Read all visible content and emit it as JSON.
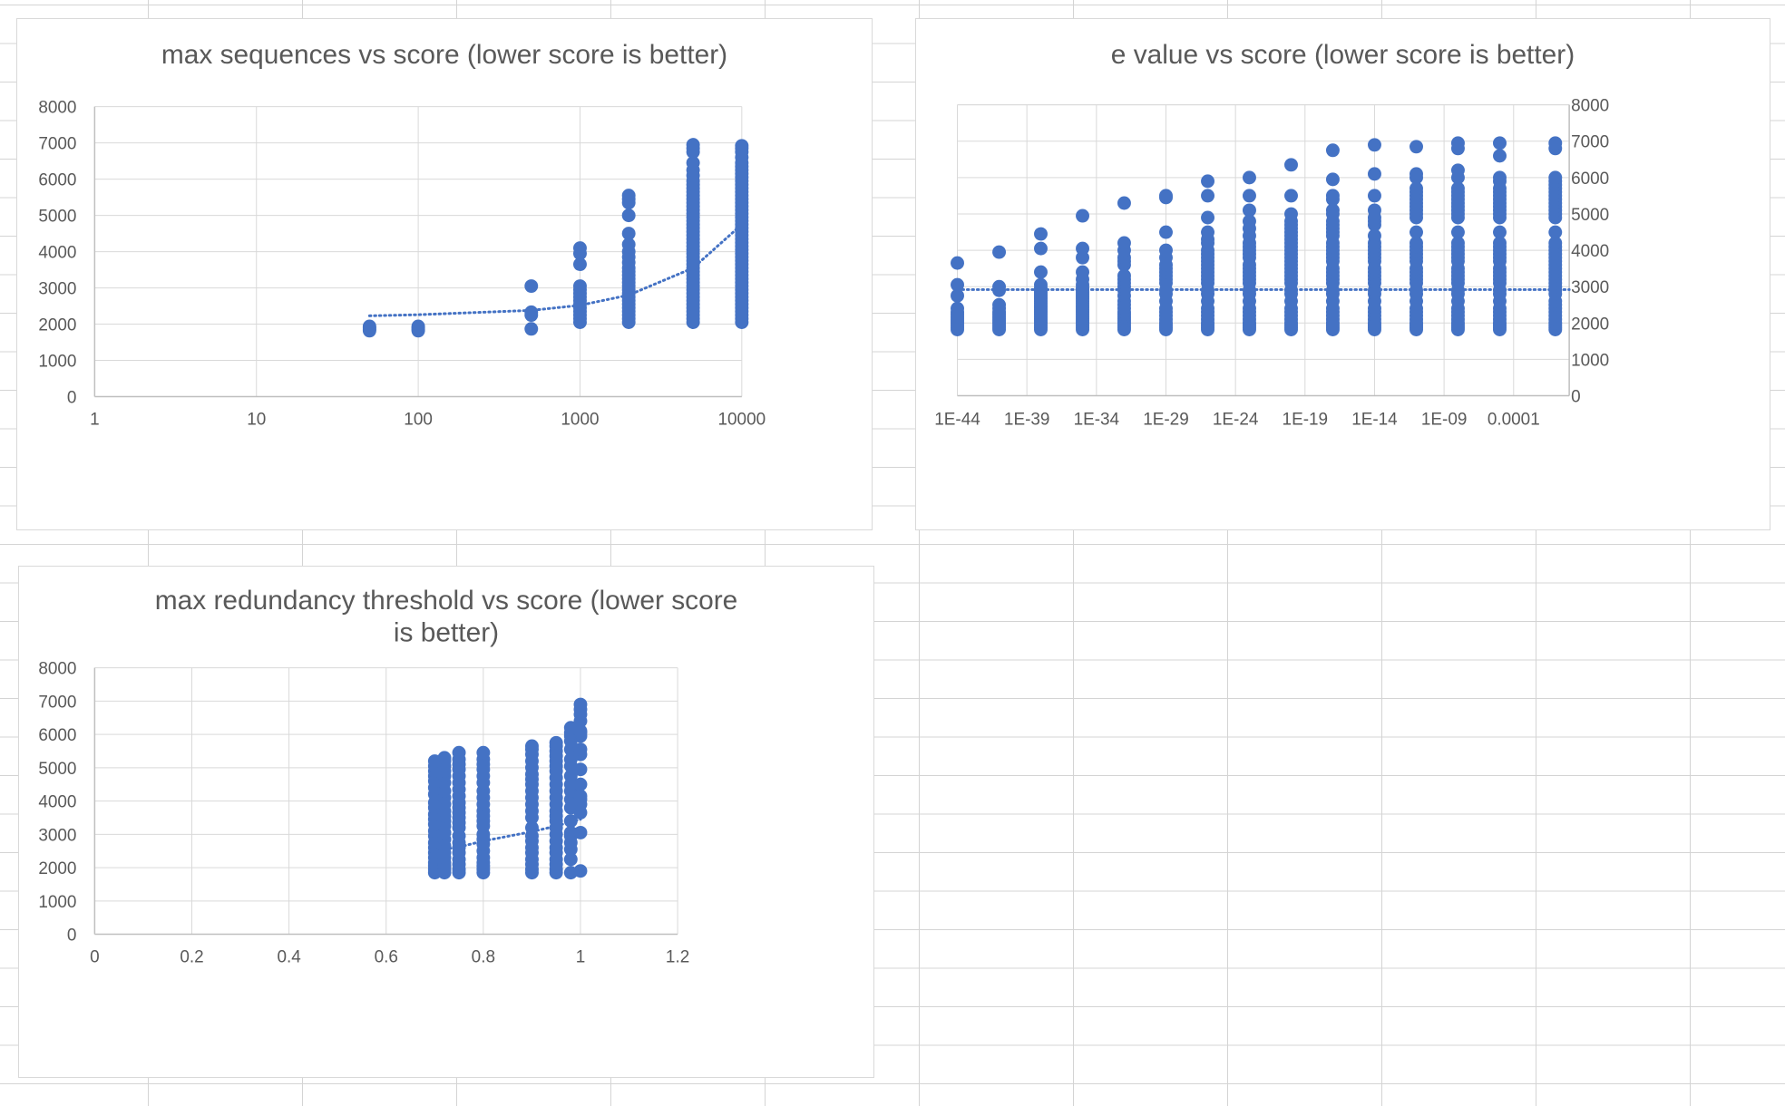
{
  "chart_data": [
    {
      "type": "scatter",
      "title": "max sequences vs score (lower score is better)",
      "x_scale": "log",
      "xlim": [
        1,
        10000
      ],
      "ylim": [
        0,
        8000
      ],
      "x_ticks": [
        "1",
        "10",
        "100",
        "1000",
        "10000"
      ],
      "y_ticks": [
        "0",
        "1000",
        "2000",
        "3000",
        "4000",
        "5000",
        "6000",
        "7000",
        "8000"
      ],
      "grid": true,
      "legend": "none",
      "color": "#4472c4",
      "trendline": {
        "type": "exponential",
        "style": "dotted",
        "points": [
          [
            50,
            2230
          ],
          [
            100,
            2260
          ],
          [
            500,
            2380
          ],
          [
            1000,
            2520
          ],
          [
            2000,
            2800
          ],
          [
            5000,
            3550
          ],
          [
            10000,
            4750
          ]
        ]
      },
      "series": [
        {
          "x": 50,
          "y": [
            1820,
            1860,
            1900,
            1940
          ]
        },
        {
          "x": 100,
          "y": [
            1820,
            1860,
            1900,
            1940
          ]
        },
        {
          "x": 500,
          "y": [
            1870,
            2250,
            2330,
            3050
          ]
        },
        {
          "x": 1000,
          "y": [
            2050,
            2150,
            2250,
            2350,
            2450,
            2550,
            2650,
            2750,
            2850,
            2950,
            3050,
            3650,
            3950,
            4100
          ]
        },
        {
          "x": 2000,
          "y": [
            2050,
            2150,
            2250,
            2350,
            2450,
            2550,
            2650,
            2750,
            2850,
            2950,
            3050,
            3150,
            3250,
            3350,
            3450,
            3550,
            3700,
            3850,
            4000,
            4200,
            4500,
            5000,
            5350,
            5450,
            5550
          ]
        },
        {
          "x": 5000,
          "y": [
            2050,
            2150,
            2250,
            2350,
            2450,
            2550,
            2650,
            2750,
            2850,
            2950,
            3050,
            3150,
            3250,
            3350,
            3450,
            3550,
            3650,
            3750,
            3850,
            3950,
            4050,
            4150,
            4250,
            4350,
            4450,
            4550,
            4650,
            4750,
            4850,
            4950,
            5050,
            5150,
            5250,
            5350,
            5450,
            5550,
            5650,
            5750,
            5850,
            5950,
            6100,
            6250,
            6450,
            6750,
            6850,
            6950
          ]
        },
        {
          "x": 10000,
          "y": [
            2050,
            2150,
            2250,
            2350,
            2450,
            2550,
            2650,
            2750,
            2850,
            2950,
            3050,
            3150,
            3250,
            3350,
            3450,
            3550,
            3650,
            3750,
            3850,
            3950,
            4050,
            4150,
            4250,
            4350,
            4450,
            4550,
            4650,
            4750,
            4850,
            4950,
            5050,
            5150,
            5250,
            5350,
            5450,
            5550,
            5650,
            5750,
            5850,
            5950,
            6050,
            6150,
            6250,
            6350,
            6450,
            6600,
            6750,
            6850,
            6920
          ]
        }
      ]
    },
    {
      "type": "scatter",
      "title": "e value vs score (lower score is better)",
      "x_scale": "log",
      "xlim": [
        "1E-44",
        "1"
      ],
      "ylim": [
        0,
        8000
      ],
      "x_ticks": [
        "1E-44",
        "1E-39",
        "1E-34",
        "1E-29",
        "1E-24",
        "1E-19",
        "1E-14",
        "1E-09",
        "0.0001"
      ],
      "y_ticks": [
        "0",
        "1000",
        "2000",
        "3000",
        "4000",
        "5000",
        "6000",
        "7000",
        "8000"
      ],
      "y_axis_position": "right",
      "grid": true,
      "legend": "none",
      "color": "#4472c4",
      "trendline": {
        "type": "linear",
        "style": "dotted",
        "points": [
          [
            "1E-44",
            2920
          ],
          [
            "1",
            2920
          ]
        ]
      },
      "series": [
        {
          "x": "1E-44",
          "y": [
            1820,
            1880,
            1940,
            2000,
            2060,
            2120,
            2180,
            2240,
            2300,
            2400,
            2750,
            3050,
            3650
          ]
        },
        {
          "x": "1E-41",
          "y": [
            1820,
            1880,
            1940,
            2000,
            2060,
            2120,
            2180,
            2240,
            2300,
            2400,
            2500,
            2900,
            3000,
            3950
          ]
        },
        {
          "x": "1E-38",
          "y": [
            1820,
            1880,
            1940,
            2000,
            2060,
            2120,
            2180,
            2240,
            2300,
            2360,
            2420,
            2480,
            2540,
            2600,
            2660,
            2720,
            2780,
            2840,
            2900,
            2960,
            3050,
            3400,
            4050,
            4450
          ]
        },
        {
          "x": "1E-35",
          "y": [
            1820,
            1880,
            1940,
            2000,
            2060,
            2120,
            2180,
            2240,
            2300,
            2360,
            2420,
            2480,
            2540,
            2600,
            2660,
            2720,
            2780,
            2840,
            2900,
            2960,
            3050,
            3200,
            3400,
            3800,
            4050,
            4950
          ]
        },
        {
          "x": "1E-32",
          "y": [
            1820,
            1880,
            1940,
            2000,
            2060,
            2120,
            2180,
            2240,
            2300,
            2400,
            2500,
            2600,
            2750,
            2900,
            3000,
            3100,
            3200,
            3300,
            3600,
            3700,
            3800,
            4000,
            4200,
            5300
          ]
        },
        {
          "x": "1E-29",
          "y": [
            1820,
            1880,
            1940,
            2000,
            2100,
            2200,
            2300,
            2400,
            2600,
            2800,
            2900,
            3100,
            3200,
            3300,
            3400,
            3500,
            3600,
            3800,
            4000,
            4500,
            5450,
            5500
          ]
        },
        {
          "x": "1E-26",
          "y": [
            1820,
            1880,
            1940,
            2000,
            2100,
            2200,
            2300,
            2400,
            2600,
            2800,
            2900,
            3100,
            3200,
            3300,
            3400,
            3500,
            3600,
            3700,
            3800,
            3900,
            4000,
            4200,
            4300,
            4500,
            4900,
            5500,
            5900
          ]
        },
        {
          "x": "1E-23",
          "y": [
            1820,
            1880,
            1940,
            2000,
            2100,
            2200,
            2300,
            2400,
            2600,
            2800,
            2900,
            3100,
            3200,
            3300,
            3400,
            3500,
            3600,
            3800,
            3900,
            4000,
            4100,
            4200,
            4400,
            4600,
            4800,
            5100,
            5500,
            6000
          ]
        },
        {
          "x": "1E-20",
          "y": [
            1820,
            1880,
            1940,
            2000,
            2100,
            2200,
            2300,
            2400,
            2600,
            2800,
            2900,
            3100,
            3200,
            3300,
            3400,
            3500,
            3600,
            3700,
            3800,
            3900,
            4000,
            4100,
            4200,
            4300,
            4400,
            4500,
            4600,
            4700,
            4800,
            5000,
            5500,
            6350
          ]
        },
        {
          "x": "1E-17",
          "y": [
            1820,
            1880,
            1940,
            2000,
            2100,
            2200,
            2300,
            2400,
            2600,
            2800,
            2900,
            3100,
            3200,
            3300,
            3400,
            3500,
            3700,
            3800,
            3900,
            4000,
            4100,
            4200,
            4400,
            4500,
            4600,
            4700,
            4800,
            5000,
            5100,
            5400,
            5500,
            5950,
            6750
          ]
        },
        {
          "x": "1E-14",
          "y": [
            1820,
            1880,
            1940,
            2000,
            2100,
            2200,
            2300,
            2400,
            2600,
            2800,
            2900,
            3100,
            3200,
            3300,
            3400,
            3500,
            3700,
            3800,
            3900,
            4000,
            4100,
            4200,
            4400,
            4700,
            4800,
            4900,
            5100,
            5500,
            6100,
            6900
          ]
        },
        {
          "x": "1E-11",
          "y": [
            1820,
            1880,
            1940,
            2000,
            2100,
            2200,
            2300,
            2400,
            2600,
            2800,
            2900,
            3100,
            3200,
            3300,
            3400,
            3500,
            3700,
            3800,
            3900,
            4000,
            4100,
            4200,
            4500,
            4900,
            5000,
            5100,
            5200,
            5300,
            5400,
            5500,
            5600,
            5700,
            6000,
            6100,
            6850
          ]
        },
        {
          "x": "1E-8",
          "y": [
            1820,
            1880,
            1940,
            2000,
            2100,
            2200,
            2300,
            2400,
            2600,
            2800,
            2900,
            3100,
            3200,
            3300,
            3400,
            3500,
            3700,
            3800,
            3900,
            4000,
            4100,
            4200,
            4500,
            4900,
            5000,
            5100,
            5200,
            5300,
            5400,
            5500,
            5600,
            5700,
            6000,
            6200,
            6800,
            6950
          ]
        },
        {
          "x": "1E-5",
          "y": [
            1820,
            1880,
            1940,
            2000,
            2100,
            2200,
            2300,
            2400,
            2600,
            2800,
            2900,
            3100,
            3200,
            3300,
            3400,
            3500,
            3700,
            3800,
            3900,
            4000,
            4100,
            4200,
            4500,
            4900,
            5000,
            5100,
            5200,
            5300,
            5400,
            5500,
            5600,
            5700,
            5900,
            6000,
            6600,
            6950
          ]
        },
        {
          "x": "0.1",
          "y": [
            1820,
            1880,
            1940,
            2000,
            2100,
            2200,
            2300,
            2400,
            2500,
            2600,
            2800,
            2900,
            3000,
            3100,
            3200,
            3300,
            3400,
            3500,
            3600,
            3700,
            3800,
            3900,
            4000,
            4100,
            4200,
            4500,
            4900,
            5000,
            5100,
            5200,
            5300,
            5400,
            5500,
            5600,
            5700,
            5800,
            5900,
            6000,
            6800,
            6950
          ]
        }
      ]
    },
    {
      "type": "scatter",
      "title": "max redundancy threshold vs score (lower score is better)",
      "xlim": [
        0,
        1.2
      ],
      "ylim": [
        0,
        8000
      ],
      "x_ticks": [
        "0",
        "0.2",
        "0.4",
        "0.6",
        "0.8",
        "1",
        "1.2"
      ],
      "y_ticks": [
        "0",
        "1000",
        "2000",
        "3000",
        "4000",
        "5000",
        "6000",
        "7000",
        "8000"
      ],
      "grid": true,
      "legend": "none",
      "color": "#4472c4",
      "trendline": {
        "type": "exponential",
        "style": "dotted",
        "points": [
          [
            0.7,
            2500
          ],
          [
            0.75,
            2620
          ],
          [
            0.8,
            2800
          ],
          [
            0.9,
            3080
          ],
          [
            0.95,
            3250
          ],
          [
            1,
            3450
          ]
        ]
      },
      "series": [
        {
          "x": 0.7,
          "y": [
            1850,
            1950,
            2050,
            2150,
            2300,
            2450,
            2600,
            2750,
            2950,
            3100,
            3300,
            3450,
            3600,
            3800,
            3950,
            4200,
            4400,
            4600,
            4750,
            4900,
            5050,
            5200
          ]
        },
        {
          "x": 0.72,
          "y": [
            1850,
            1950,
            2050,
            2150,
            2300,
            2450,
            2650,
            2850,
            3050,
            3250,
            3400,
            3550,
            3700,
            3900,
            4100,
            4300,
            4550,
            4750,
            4900,
            5050,
            5200,
            5300
          ]
        },
        {
          "x": 0.75,
          "y": [
            1850,
            1950,
            2100,
            2250,
            2450,
            2600,
            2750,
            2950,
            3200,
            3350,
            3500,
            3650,
            3800,
            3950,
            4150,
            4350,
            4550,
            4750,
            4950,
            5100,
            5250,
            5450
          ]
        },
        {
          "x": 0.8,
          "y": [
            1850,
            1950,
            2050,
            2150,
            2300,
            2500,
            2700,
            2850,
            3000,
            3250,
            3400,
            3550,
            3700,
            3900,
            4100,
            4300,
            4550,
            4750,
            4950,
            5100,
            5250,
            5450
          ]
        },
        {
          "x": 0.9,
          "y": [
            1850,
            1950,
            2100,
            2250,
            2450,
            2600,
            2800,
            2950,
            3200,
            3500,
            3700,
            3900,
            4100,
            4300,
            4500,
            4650,
            4800,
            5000,
            5200,
            5400,
            5550,
            5650
          ]
        },
        {
          "x": 0.95,
          "y": [
            1850,
            1950,
            2100,
            2250,
            2450,
            2600,
            2800,
            3000,
            3200,
            3400,
            3550,
            3700,
            3900,
            4100,
            4300,
            4500,
            4700,
            4900,
            5050,
            5200,
            5350,
            5500,
            5650,
            5750
          ]
        },
        {
          "x": 0.98,
          "y": [
            1850,
            2250,
            2550,
            2750,
            2950,
            3050,
            3400,
            3800,
            4050,
            4300,
            4500,
            4750,
            5050,
            5250,
            5550,
            5800,
            5950,
            6050,
            6200
          ]
        },
        {
          "x": 1,
          "y": [
            1900,
            3050,
            3650,
            3900,
            4050,
            4150,
            4500,
            4950,
            5400,
            5550,
            5950,
            6050,
            6100,
            6400,
            6600,
            6750,
            6900
          ]
        }
      ]
    }
  ]
}
